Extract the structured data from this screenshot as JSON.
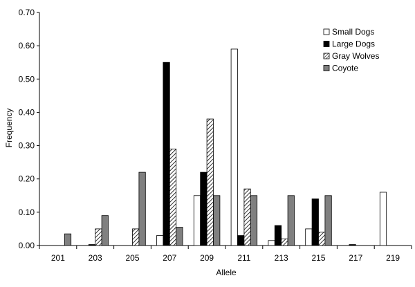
{
  "chart_data": {
    "type": "bar",
    "title": "",
    "xlabel": "Allele",
    "ylabel": "Frequency",
    "ylim": [
      0,
      0.7
    ],
    "yticks": [
      "0.00",
      "0.10",
      "0.20",
      "0.30",
      "0.40",
      "0.50",
      "0.60",
      "0.70"
    ],
    "categories": [
      "201",
      "203",
      "205",
      "207",
      "209",
      "211",
      "213",
      "215",
      "217",
      "219"
    ],
    "legend_position": "top-right",
    "grid": false,
    "series": [
      {
        "name": "Small Dogs",
        "pattern": "white",
        "values": [
          0,
          0,
          0,
          0.03,
          0.15,
          0.59,
          0.015,
          0.05,
          0,
          0.16
        ]
      },
      {
        "name": "Large Dogs",
        "pattern": "black",
        "values": [
          0,
          0.003,
          0,
          0.55,
          0.22,
          0.03,
          0.06,
          0.14,
          0.003,
          0
        ]
      },
      {
        "name": "Gray Wolves",
        "pattern": "hatch",
        "values": [
          0,
          0.05,
          0.05,
          0.29,
          0.38,
          0.17,
          0.02,
          0.04,
          0,
          0
        ]
      },
      {
        "name": "Coyote",
        "pattern": "gray",
        "values": [
          0.035,
          0.09,
          0.22,
          0.055,
          0.15,
          0.15,
          0.15,
          0.15,
          0,
          0
        ]
      }
    ]
  }
}
